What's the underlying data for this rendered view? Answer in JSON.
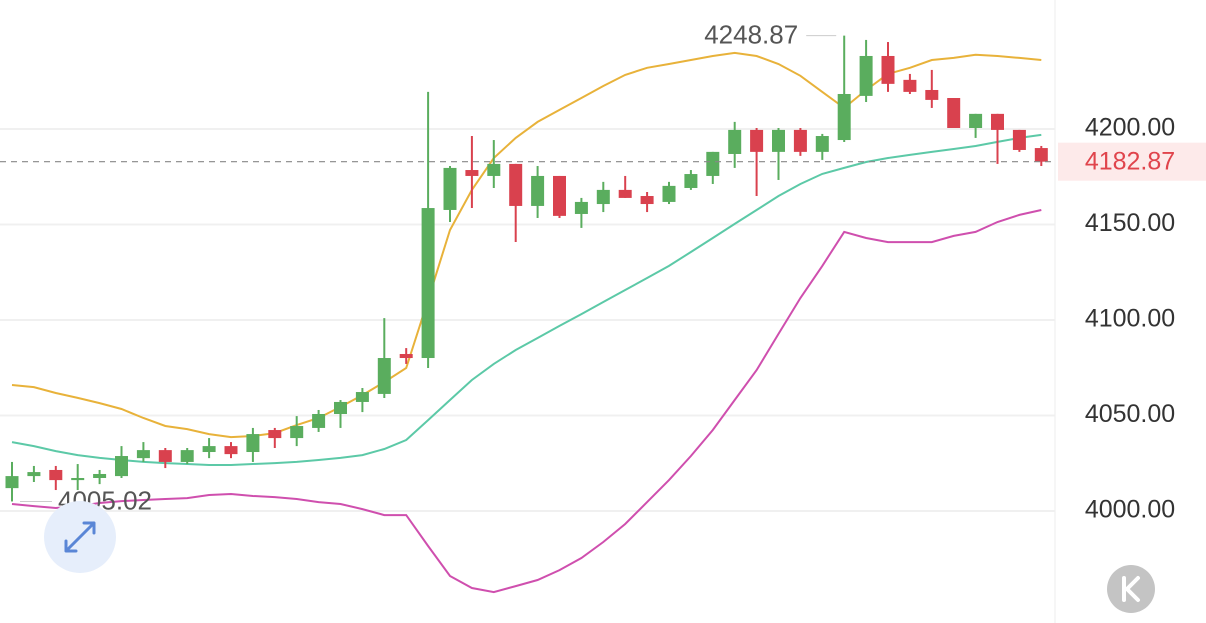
{
  "chart_data": {
    "type": "candlestick",
    "up_color": "#5aad5e",
    "down_color": "#d9414e",
    "open": [
      4012.0,
      4018.3,
      4021.5,
      4016.2,
      4017.3,
      4018.3,
      4027.7,
      4031.9,
      4025.7,
      4030.9,
      4034.0,
      4030.9,
      4042.4,
      4038.2,
      4043.5,
      4050.8,
      4057.1,
      4061.3,
      4082.2,
      4080.1,
      4157.6,
      4178.5,
      4175.4,
      4181.7,
      4159.7,
      4175.4,
      4155.5,
      4160.7,
      4168.1,
      4164.9,
      4161.8,
      4169.1,
      4175.4,
      4186.9,
      4199.5,
      4188.0,
      4199.5,
      4188.0,
      4194.2,
      4217.3,
      4238.2,
      4225.7,
      4220.4,
      4216.2,
      4200.5,
      4207.9,
      4199.5,
      4190.0
    ],
    "high": [
      4025.7,
      4023.6,
      4023.6,
      4024.6,
      4021.5,
      4034.0,
      4036.1,
      4033.0,
      4033.0,
      4038.2,
      4036.1,
      4043.5,
      4043.5,
      4049.7,
      4052.9,
      4058.1,
      4064.4,
      4101.0,
      4085.3,
      4219.4,
      4180.6,
      4196.3,
      4194.2,
      4181.7,
      4180.6,
      4175.4,
      4163.9,
      4172.3,
      4175.4,
      4167.0,
      4172.3,
      4178.5,
      4188.0,
      4203.7,
      4200.5,
      4200.5,
      4200.5,
      4197.4,
      4248.87,
      4246.6,
      4245.5,
      4228.8,
      4230.9,
      4216.2,
      4207.9,
      4207.9,
      4199.5,
      4191.1
    ],
    "low": [
      4005.02,
      4015.2,
      4011.0,
      4011.0,
      4014.1,
      4017.3,
      4025.7,
      4022.5,
      4024.6,
      4027.7,
      4027.7,
      4025.7,
      4033.0,
      4034.0,
      4041.4,
      4043.5,
      4051.8,
      4059.2,
      4077.0,
      4074.9,
      4151.3,
      4158.6,
      4169.1,
      4140.8,
      4153.4,
      4153.4,
      4148.2,
      4156.5,
      4163.9,
      4156.5,
      4160.7,
      4168.1,
      4171.2,
      4179.6,
      4164.9,
      4173.3,
      4185.9,
      4183.8,
      4193.2,
      4214.1,
      4219.4,
      4218.3,
      4211.0,
      4200.5,
      4195.3,
      4181.7,
      4188.0,
      4180.6
    ],
    "close": [
      4018.3,
      4020.4,
      4016.2,
      4017.3,
      4019.4,
      4028.8,
      4031.9,
      4025.7,
      4031.9,
      4034.0,
      4029.8,
      4040.3,
      4038.2,
      4044.5,
      4050.8,
      4057.1,
      4062.3,
      4080.1,
      4080.1,
      4158.6,
      4179.6,
      4175.4,
      4181.7,
      4159.7,
      4175.4,
      4154.5,
      4161.8,
      4168.1,
      4163.9,
      4160.7,
      4170.2,
      4176.4,
      4188.0,
      4199.5,
      4188.0,
      4199.5,
      4188.0,
      4196.3,
      4218.3,
      4238.2,
      4223.6,
      4219.4,
      4215.2,
      4200.5,
      4207.9,
      4199.5,
      4189.0,
      4182.87
    ],
    "series": [
      {
        "color": "#e8b23a",
        "values": [
          4066.0,
          4064.9,
          4061.8,
          4059.2,
          4056.5,
          4053.4,
          4048.7,
          4044.5,
          4042.9,
          4040.3,
          4038.7,
          4039.3,
          4040.8,
          4045.0,
          4048.7,
          4054.5,
          4060.7,
          4067.5,
          4074.9,
          4110.5,
          4147.1,
          4168.1,
          4184.8,
          4195.3,
          4203.7,
          4210.0,
          4216.2,
          4222.5,
          4228.3,
          4232.0,
          4234.0,
          4236.1,
          4238.2,
          4239.8,
          4238.2,
          4234.0,
          4227.8,
          4219.4,
          4211.0,
          4220.4,
          4228.8,
          4232.0,
          4236.1,
          4237.2,
          4238.8,
          4238.2,
          4237.2,
          4236.1
        ]
      },
      {
        "color": "#5cc9a7",
        "values": [
          4036.1,
          4034.0,
          4031.4,
          4029.3,
          4027.8,
          4026.7,
          4025.7,
          4025.1,
          4024.6,
          4024.1,
          4024.1,
          4024.6,
          4025.1,
          4025.7,
          4026.7,
          4027.8,
          4029.3,
          4032.5,
          4037.2,
          4047.6,
          4058.1,
          4068.6,
          4077.0,
          4084.3,
          4090.6,
          4096.9,
          4103.1,
          4109.4,
          4115.7,
          4122.0,
          4128.3,
          4135.6,
          4142.9,
          4150.3,
          4157.6,
          4164.9,
          4171.2,
          4176.5,
          4179.6,
          4182.7,
          4184.8,
          4186.4,
          4188.0,
          4189.5,
          4191.1,
          4193.2,
          4195.3,
          4196.9
        ]
      },
      {
        "color": "#cf4fae",
        "values": [
          4003.7,
          4002.6,
          4001.6,
          4002.6,
          4004.2,
          4005.2,
          4005.8,
          4006.3,
          4006.8,
          4008.4,
          4008.9,
          4007.9,
          4007.3,
          4006.3,
          4004.7,
          4003.7,
          4001.0,
          3997.9,
          3997.9,
          3981.7,
          3966.0,
          3959.7,
          3957.6,
          3960.7,
          3963.9,
          3969.1,
          3975.4,
          3983.8,
          3993.2,
          4004.7,
          4016.2,
          4028.8,
          4042.4,
          4058.1,
          4073.8,
          4092.7,
          4111.5,
          4128.3,
          4146.1,
          4142.9,
          4140.8,
          4140.8,
          4140.8,
          4144.0,
          4146.1,
          4151.3,
          4155.0,
          4157.6
        ]
      }
    ],
    "ylim": [
      3941.4,
      4267.5
    ],
    "yticks": [
      {
        "value": 4000,
        "label": "4000.00"
      },
      {
        "value": 4050,
        "label": "4050.00"
      },
      {
        "value": 4100,
        "label": "4100.00"
      },
      {
        "value": 4150,
        "label": "4150.00"
      },
      {
        "value": 4200,
        "label": "4200.00"
      }
    ],
    "grid": true
  }
}
